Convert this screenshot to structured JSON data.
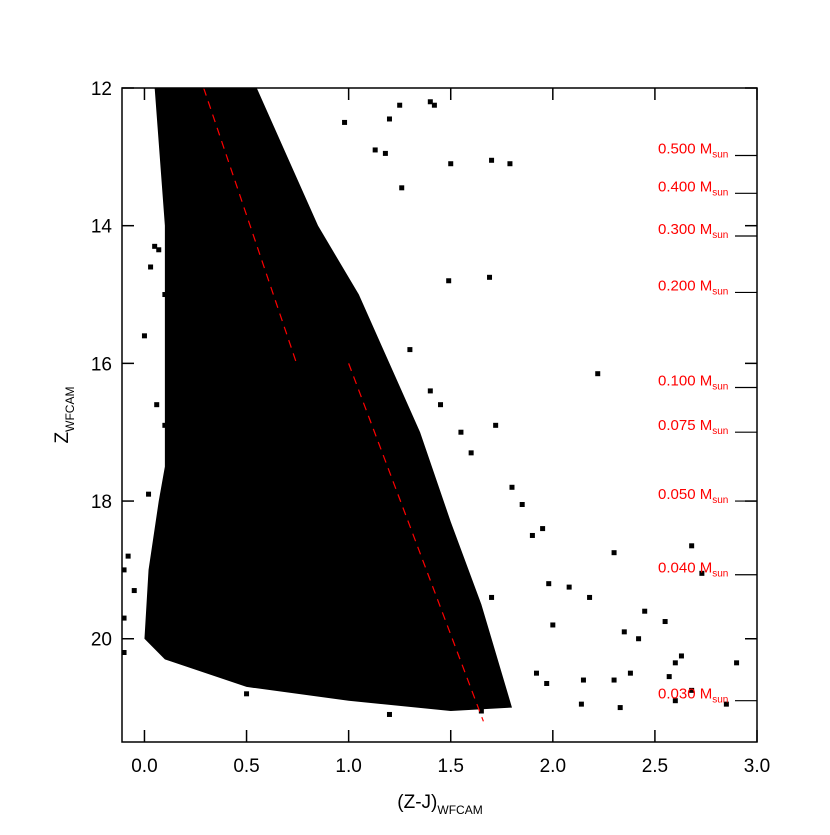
{
  "chart_data": {
    "type": "scatter",
    "x_label": {
      "text": "(Z-J)",
      "subscript": "WFCAM"
    },
    "y_label": {
      "text": "Z",
      "subscript": "WFCAM"
    },
    "xlim": [
      -0.11,
      3.0
    ],
    "ylim": [
      12,
      21.5
    ],
    "y_inverted": true,
    "xticks": [
      {
        "value": 0.0,
        "label": "0.0"
      },
      {
        "value": 0.5,
        "label": "0.5"
      },
      {
        "value": 1.0,
        "label": "1.0"
      },
      {
        "value": 1.5,
        "label": "1.5"
      },
      {
        "value": 2.0,
        "label": "2.0"
      },
      {
        "value": 2.5,
        "label": "2.5"
      },
      {
        "value": 3.0,
        "label": "3.0"
      }
    ],
    "yticks": [
      12,
      14,
      16,
      18,
      20
    ],
    "envelope": {
      "color": "#000000",
      "x": [
        0.05,
        0.55,
        0.7,
        0.85,
        1.05,
        1.2,
        1.35,
        1.5,
        1.65,
        1.75,
        1.8,
        1.5,
        1.0,
        0.5,
        0.1,
        0.0,
        0.02,
        0.07,
        0.1,
        0.1,
        0.1
      ],
      "y": [
        12,
        12,
        13,
        14,
        15,
        16,
        17,
        18.3,
        19.5,
        20.5,
        21.0,
        21.05,
        20.9,
        20.7,
        20.3,
        20.0,
        19.0,
        18.0,
        17.5,
        16.0,
        14.0
      ]
    },
    "series": [
      {
        "color": "#000000",
        "x": [
          1.25,
          1.4,
          1.42,
          1.2,
          0.98,
          1.13,
          1.7,
          1.79,
          1.5,
          1.26,
          1.18,
          1.49,
          1.69,
          2.22,
          2.68,
          2.73,
          2.3,
          2.18,
          2.08,
          2.45,
          2.55,
          2.35,
          2.42,
          2.63,
          2.6,
          2.9,
          2.57,
          2.38,
          2.3,
          2.15,
          2.33,
          2.14,
          2.6,
          2.68,
          2.85,
          1.55,
          1.72,
          1.6,
          1.8,
          1.85,
          1.9,
          1.95,
          1.98,
          2.0,
          1.92,
          1.97,
          1.7,
          1.3,
          1.4,
          1.45,
          -0.1,
          -0.08,
          -0.05,
          -0.1,
          -0.1,
          0.05,
          0.03,
          0.07,
          0.0,
          0.1,
          0.06,
          0.1,
          0.02,
          0.5,
          1.2,
          1.65
        ],
        "y": [
          12.25,
          12.2,
          12.25,
          12.45,
          12.5,
          12.9,
          13.05,
          13.1,
          13.1,
          13.45,
          12.95,
          14.8,
          14.75,
          16.15,
          18.65,
          19.05,
          18.75,
          19.4,
          19.25,
          19.6,
          19.75,
          19.9,
          20.0,
          20.25,
          20.35,
          20.35,
          20.55,
          20.5,
          20.6,
          20.6,
          21.0,
          20.95,
          20.9,
          20.75,
          20.95,
          17.0,
          16.9,
          17.3,
          17.8,
          18.05,
          18.5,
          18.4,
          19.2,
          19.8,
          20.5,
          20.65,
          19.4,
          15.8,
          16.4,
          16.6,
          19.0,
          18.8,
          19.3,
          19.7,
          20.2,
          14.3,
          14.6,
          14.35,
          15.6,
          15.0,
          16.6,
          16.9,
          17.9,
          20.8,
          21.1,
          21.05
        ]
      }
    ],
    "isochrone": {
      "color": "#ff0000",
      "dashed": true,
      "x": [
        0.29,
        0.745,
        null,
        1.0,
        1.66
      ],
      "y": [
        12,
        16,
        null,
        16,
        21.2
      ]
    },
    "annotations_color": "#ff0000",
    "annotations": [
      {
        "label": "0.500 M",
        "subscript": "sun",
        "y": 12.98
      },
      {
        "label": "0.400 M",
        "subscript": "sun",
        "y": 13.53
      },
      {
        "label": "0.300 M",
        "subscript": "sun",
        "y": 14.15
      },
      {
        "label": "0.200 M",
        "subscript": "sun",
        "y": 14.97
      },
      {
        "label": "0.100 M",
        "subscript": "sun",
        "y": 16.35
      },
      {
        "label": "0.075 M",
        "subscript": "sun",
        "y": 17.0
      },
      {
        "label": "0.050 M",
        "subscript": "sun",
        "y": 18.0
      },
      {
        "label": "0.040 M",
        "subscript": "sun",
        "y": 19.07
      },
      {
        "label": "0.030 M",
        "subscript": "sun",
        "y": 20.9
      }
    ]
  }
}
